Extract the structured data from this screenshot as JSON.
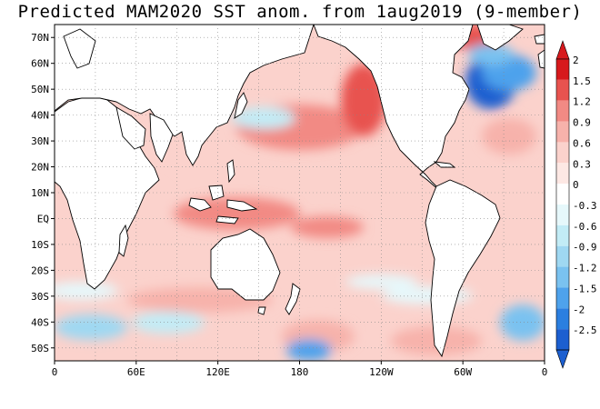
{
  "title": "Predicted MAM2020 SST anom. from 1aug2019 (9-member)",
  "map": {
    "lat_labels": [
      "70N",
      "60N",
      "50N",
      "40N",
      "30N",
      "20N",
      "10N",
      "EQ",
      "10S",
      "20S",
      "30S",
      "40S",
      "50S"
    ],
    "lon_labels": [
      "0",
      "60E",
      "120E",
      "180",
      "120W",
      "60W",
      "0"
    ],
    "lat_range": [
      -55,
      75
    ],
    "lon_range": [
      0,
      360
    ],
    "land_color": "#ffffff",
    "coast_color": "#000000"
  },
  "colorbar": {
    "labels": [
      "2",
      "1.5",
      "1.2",
      "0.9",
      "0.6",
      "0.3",
      "0",
      "-0.3",
      "-0.6",
      "-0.9",
      "-1.2",
      "-1.5",
      "-2",
      "-2.5"
    ],
    "colors": [
      "#d7191c",
      "#e8534f",
      "#f28a84",
      "#f7b2ab",
      "#fbd2cc",
      "#fde8e4",
      "#ffffff",
      "#e6f8fb",
      "#c2ecf6",
      "#9fd8f2",
      "#7ac2f0",
      "#4ea2ec",
      "#2b7fe0",
      "#1c5fd0"
    ]
  }
}
